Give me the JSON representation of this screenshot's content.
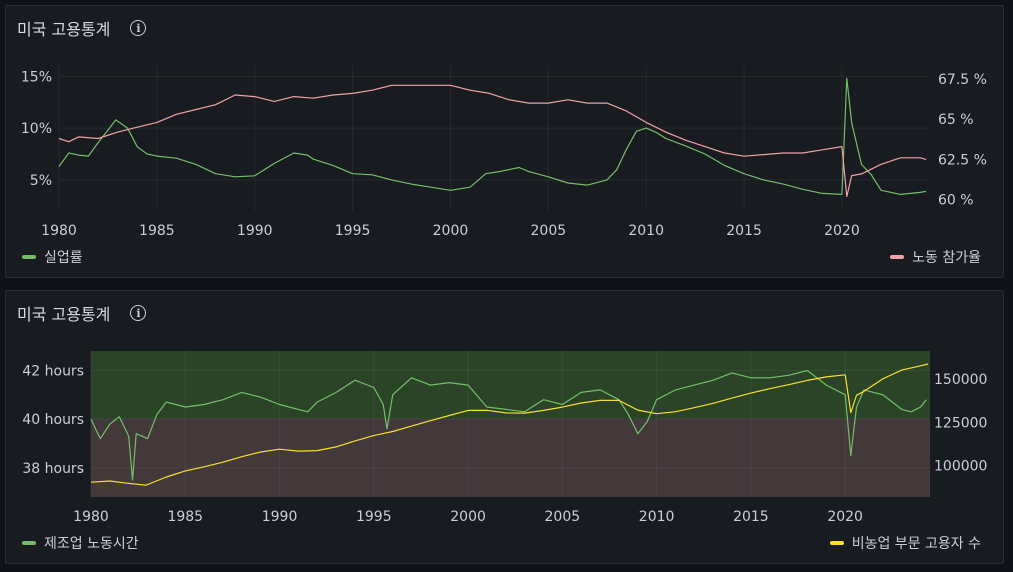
{
  "panels": [
    {
      "title": "미국 고용통계"
    },
    {
      "title": "미국 고용통계"
    }
  ],
  "chart_data": [
    {
      "type": "line",
      "x_ticks": [
        "1980",
        "1985",
        "1990",
        "1995",
        "2000",
        "2005",
        "2010",
        "2015",
        "2020"
      ],
      "y_left_ticks": [
        "15%",
        "10%",
        "5%"
      ],
      "y_right_ticks": [
        "67.5 %",
        "65 %",
        "62.5 %",
        "60 %"
      ],
      "xlim": [
        1980,
        2024.5
      ],
      "y_left_lim": [
        2,
        16
      ],
      "y_right_lim": [
        59.3,
        68.3
      ],
      "series": [
        {
          "name": "실업률",
          "axis": "left",
          "color": "#73bf69",
          "points": [
            [
              1980,
              6.3
            ],
            [
              1980.5,
              7.6
            ],
            [
              1981,
              7.4
            ],
            [
              1981.5,
              7.3
            ],
            [
              1982,
              8.6
            ],
            [
              1982.5,
              9.8
            ],
            [
              1982.9,
              10.8
            ],
            [
              1983.5,
              10
            ],
            [
              1984,
              8.2
            ],
            [
              1984.5,
              7.5
            ],
            [
              1985,
              7.3
            ],
            [
              1986,
              7.1
            ],
            [
              1987,
              6.5
            ],
            [
              1988,
              5.6
            ],
            [
              1989,
              5.3
            ],
            [
              1990,
              5.4
            ],
            [
              1991,
              6.6
            ],
            [
              1992,
              7.6
            ],
            [
              1992.7,
              7.4
            ],
            [
              1993,
              7
            ],
            [
              1994,
              6.4
            ],
            [
              1995,
              5.6
            ],
            [
              1996,
              5.5
            ],
            [
              1997,
              5
            ],
            [
              1998,
              4.6
            ],
            [
              1999,
              4.3
            ],
            [
              2000,
              4
            ],
            [
              2001,
              4.3
            ],
            [
              2001.8,
              5.6
            ],
            [
              2002.5,
              5.8
            ],
            [
              2003.5,
              6.2
            ],
            [
              2004,
              5.8
            ],
            [
              2005,
              5.3
            ],
            [
              2006,
              4.7
            ],
            [
              2007,
              4.5
            ],
            [
              2008,
              5
            ],
            [
              2008.5,
              6
            ],
            [
              2009,
              8
            ],
            [
              2009.5,
              9.7
            ],
            [
              2010,
              10
            ],
            [
              2010.5,
              9.6
            ],
            [
              2011,
              9
            ],
            [
              2012,
              8.3
            ],
            [
              2013,
              7.5
            ],
            [
              2014,
              6.4
            ],
            [
              2015,
              5.6
            ],
            [
              2016,
              5
            ],
            [
              2017,
              4.6
            ],
            [
              2018,
              4.1
            ],
            [
              2019,
              3.7
            ],
            [
              2020,
              3.6
            ],
            [
              2020.25,
              14.8
            ],
            [
              2020.5,
              10.5
            ],
            [
              2021,
              6.5
            ],
            [
              2021.5,
              5.5
            ],
            [
              2022,
              4
            ],
            [
              2023,
              3.6
            ],
            [
              2024,
              3.8
            ],
            [
              2024.3,
              3.9
            ]
          ]
        },
        {
          "name": "노동 참가율",
          "axis": "right",
          "color": "#f2a1a6",
          "points": [
            [
              1980,
              63.8
            ],
            [
              1980.5,
              63.6
            ],
            [
              1981,
              63.9
            ],
            [
              1982,
              63.8
            ],
            [
              1983,
              64.2
            ],
            [
              1984,
              64.5
            ],
            [
              1985,
              64.8
            ],
            [
              1986,
              65.3
            ],
            [
              1987,
              65.6
            ],
            [
              1988,
              65.9
            ],
            [
              1989,
              66.5
            ],
            [
              1990,
              66.4
            ],
            [
              1991,
              66.1
            ],
            [
              1992,
              66.4
            ],
            [
              1993,
              66.3
            ],
            [
              1994,
              66.5
            ],
            [
              1995,
              66.6
            ],
            [
              1996,
              66.8
            ],
            [
              1997,
              67.1
            ],
            [
              1998,
              67.1
            ],
            [
              1999,
              67.1
            ],
            [
              2000,
              67.1
            ],
            [
              2001,
              66.8
            ],
            [
              2002,
              66.6
            ],
            [
              2003,
              66.2
            ],
            [
              2004,
              66
            ],
            [
              2005,
              66
            ],
            [
              2006,
              66.2
            ],
            [
              2007,
              66
            ],
            [
              2008,
              66
            ],
            [
              2009,
              65.5
            ],
            [
              2010,
              64.8
            ],
            [
              2011,
              64.2
            ],
            [
              2012,
              63.7
            ],
            [
              2013,
              63.3
            ],
            [
              2014,
              62.9
            ],
            [
              2015,
              62.7
            ],
            [
              2016,
              62.8
            ],
            [
              2017,
              62.9
            ],
            [
              2018,
              62.9
            ],
            [
              2019,
              63.1
            ],
            [
              2020,
              63.3
            ],
            [
              2020.25,
              60.2
            ],
            [
              2020.5,
              61.5
            ],
            [
              2021,
              61.6
            ],
            [
              2022,
              62.2
            ],
            [
              2023,
              62.6
            ],
            [
              2024,
              62.6
            ],
            [
              2024.3,
              62.5
            ]
          ]
        }
      ]
    },
    {
      "type": "line",
      "x_ticks": [
        "1980",
        "1985",
        "1990",
        "1995",
        "2000",
        "2005",
        "2010",
        "2015",
        "2020"
      ],
      "y_left_ticks": [
        "42 hours",
        "40 hours",
        "38 hours"
      ],
      "y_right_ticks": [
        "150000",
        "125000",
        "100000"
      ],
      "xlim": [
        1980,
        2024.5
      ],
      "y_left_lim": [
        36.8,
        42.8
      ],
      "y_right_lim": [
        82000,
        166000
      ],
      "threshold": {
        "value": 40,
        "above_color": "#2b4427",
        "below_color": "#43383a"
      },
      "series": [
        {
          "name": "제조업 노동시간",
          "axis": "left",
          "color": "#73bf69",
          "points": [
            [
              1980,
              40
            ],
            [
              1980.3,
              39.5
            ],
            [
              1980.5,
              39.2
            ],
            [
              1981,
              39.8
            ],
            [
              1981.5,
              40.1
            ],
            [
              1982,
              39.3
            ],
            [
              1982.2,
              37.5
            ],
            [
              1982.4,
              39.4
            ],
            [
              1983,
              39.2
            ],
            [
              1983.5,
              40.2
            ],
            [
              1984,
              40.7
            ],
            [
              1984.5,
              40.6
            ],
            [
              1985,
              40.5
            ],
            [
              1986,
              40.6
            ],
            [
              1987,
              40.8
            ],
            [
              1988,
              41.1
            ],
            [
              1989,
              40.9
            ],
            [
              1990,
              40.6
            ],
            [
              1991,
              40.4
            ],
            [
              1991.5,
              40.3
            ],
            [
              1992,
              40.7
            ],
            [
              1993,
              41.1
            ],
            [
              1994,
              41.6
            ],
            [
              1995,
              41.3
            ],
            [
              1995.5,
              40.6
            ],
            [
              1995.7,
              39.6
            ],
            [
              1996,
              41
            ],
            [
              1997,
              41.7
            ],
            [
              1998,
              41.4
            ],
            [
              1999,
              41.5
            ],
            [
              2000,
              41.4
            ],
            [
              2001,
              40.5
            ],
            [
              2002,
              40.4
            ],
            [
              2003,
              40.3
            ],
            [
              2004,
              40.8
            ],
            [
              2005,
              40.6
            ],
            [
              2006,
              41.1
            ],
            [
              2007,
              41.2
            ],
            [
              2008,
              40.8
            ],
            [
              2008.5,
              40.2
            ],
            [
              2009,
              39.4
            ],
            [
              2009.5,
              39.9
            ],
            [
              2010,
              40.8
            ],
            [
              2011,
              41.2
            ],
            [
              2012,
              41.4
            ],
            [
              2013,
              41.6
            ],
            [
              2014,
              41.9
            ],
            [
              2015,
              41.7
            ],
            [
              2016,
              41.7
            ],
            [
              2017,
              41.8
            ],
            [
              2018,
              42
            ],
            [
              2019,
              41.4
            ],
            [
              2020,
              41
            ],
            [
              2020.3,
              38.5
            ],
            [
              2020.6,
              40.5
            ],
            [
              2021,
              41.2
            ],
            [
              2022,
              41
            ],
            [
              2023,
              40.4
            ],
            [
              2023.5,
              40.3
            ],
            [
              2024,
              40.5
            ],
            [
              2024.3,
              40.8
            ]
          ]
        },
        {
          "name": "비농업 부문 고용자 수",
          "axis": "right",
          "color": "#fade2a",
          "points": [
            [
              1980,
              90500
            ],
            [
              1981,
              91200
            ],
            [
              1982,
              89800
            ],
            [
              1982.9,
              88800
            ],
            [
              1983,
              89200
            ],
            [
              1984,
              93500
            ],
            [
              1985,
              97000
            ],
            [
              1986,
              99400
            ],
            [
              1987,
              102000
            ],
            [
              1988,
              105200
            ],
            [
              1989,
              107900
            ],
            [
              1990,
              109500
            ],
            [
              1991,
              108400
            ],
            [
              1992,
              108700
            ],
            [
              1993,
              110800
            ],
            [
              1994,
              114300
            ],
            [
              1995,
              117300
            ],
            [
              1996,
              119700
            ],
            [
              1997,
              122800
            ],
            [
              1998,
              125900
            ],
            [
              1999,
              128900
            ],
            [
              2000,
              131800
            ],
            [
              2001,
              131900
            ],
            [
              2002,
              130400
            ],
            [
              2003,
              130300
            ],
            [
              2004,
              131800
            ],
            [
              2005,
              133700
            ],
            [
              2006,
              136100
            ],
            [
              2007,
              137600
            ],
            [
              2008,
              137600
            ],
            [
              2009,
              132000
            ],
            [
              2010,
              129900
            ],
            [
              2011,
              131100
            ],
            [
              2012,
              133400
            ],
            [
              2013,
              135900
            ],
            [
              2014,
              138900
            ],
            [
              2015,
              141800
            ],
            [
              2016,
              144300
            ],
            [
              2017,
              146600
            ],
            [
              2018,
              149100
            ],
            [
              2019,
              151100
            ],
            [
              2020,
              152300
            ],
            [
              2020.3,
              130500
            ],
            [
              2020.6,
              140500
            ],
            [
              2021,
              142800
            ],
            [
              2022,
              150000
            ],
            [
              2023,
              155000
            ],
            [
              2024,
              157500
            ],
            [
              2024.4,
              158500
            ]
          ]
        }
      ]
    }
  ]
}
